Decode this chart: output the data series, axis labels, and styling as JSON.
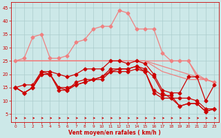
{
  "x": [
    0,
    1,
    2,
    3,
    4,
    5,
    6,
    7,
    8,
    9,
    10,
    11,
    12,
    13,
    14,
    15,
    16,
    17,
    18,
    19,
    20,
    21,
    22,
    23
  ],
  "pink_upper": [
    25,
    26,
    34,
    35,
    26,
    26,
    27,
    32,
    33,
    37,
    38,
    38,
    44,
    43,
    37,
    37,
    37,
    28,
    25,
    25,
    25,
    19,
    18,
    17
  ],
  "pink_mid1": [
    25,
    25,
    25,
    25,
    25,
    25,
    25,
    25,
    25,
    25,
    25,
    25,
    25,
    25,
    25,
    25,
    25,
    25,
    25,
    25,
    25,
    20,
    18,
    17
  ],
  "pink_mid2": [
    25,
    25,
    25,
    25,
    25,
    25,
    25,
    25,
    25,
    25,
    25,
    25,
    25,
    25,
    25,
    25,
    24,
    23,
    22,
    21,
    20,
    19,
    18,
    17
  ],
  "pink_lower": [
    25,
    25,
    25,
    25,
    25,
    25,
    25,
    25,
    25,
    25,
    25,
    25,
    25,
    25,
    25,
    25,
    23,
    21,
    20,
    19,
    18,
    18,
    18,
    17
  ],
  "red_upper": [
    15,
    16,
    16,
    21,
    21,
    20,
    19,
    20,
    22,
    22,
    22,
    25,
    25,
    24,
    25,
    24,
    20,
    14,
    13,
    13,
    19,
    19,
    10,
    16
  ],
  "red_lower1": [
    15,
    13,
    15,
    21,
    20,
    15,
    14,
    17,
    18,
    18,
    19,
    22,
    22,
    22,
    23,
    22,
    19,
    13,
    11,
    11,
    11,
    10,
    7,
    7
  ],
  "red_lower2": [
    15,
    13,
    15,
    20,
    20,
    15,
    15,
    16,
    17,
    18,
    19,
    21,
    22,
    22,
    23,
    21,
    14,
    12,
    12,
    8,
    9,
    9,
    6,
    7
  ],
  "red_lower3": [
    15,
    13,
    15,
    20,
    20,
    14,
    14,
    16,
    17,
    18,
    18,
    21,
    21,
    21,
    22,
    21,
    13,
    11,
    11,
    8,
    9,
    9,
    6,
    7
  ],
  "bg_color": "#cce8e8",
  "grid_color": "#aacccc",
  "pink_color": "#f08080",
  "red_color": "#cc0000",
  "xlabel": "Vent moyen/en rafales ( km/h )",
  "ylim": [
    2,
    47
  ],
  "xlim": [
    -0.5,
    23.5
  ],
  "yticks": [
    5,
    10,
    15,
    20,
    25,
    30,
    35,
    40,
    45
  ],
  "xticks": [
    0,
    1,
    2,
    3,
    4,
    5,
    6,
    7,
    8,
    9,
    10,
    11,
    12,
    13,
    14,
    15,
    16,
    17,
    18,
    19,
    20,
    21,
    22,
    23
  ]
}
